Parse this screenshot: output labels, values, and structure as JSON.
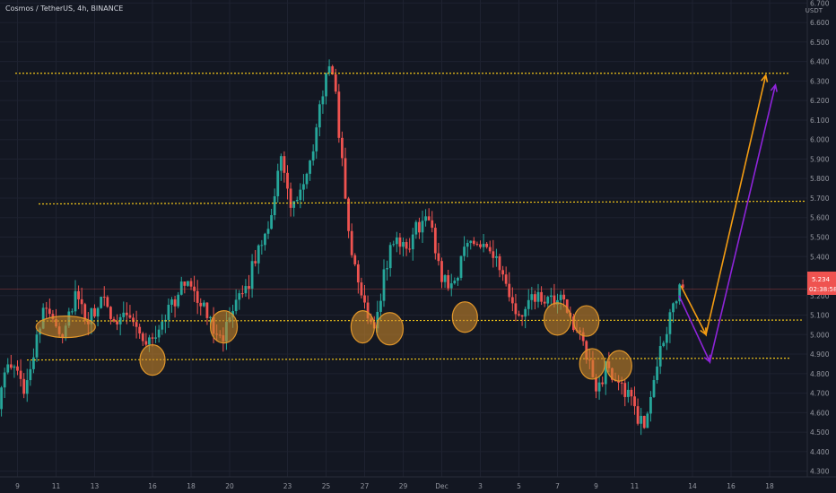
{
  "header": {
    "title": "Cosmos / TetherUS, 4h, BINANCE"
  },
  "colors": {
    "background": "#131722",
    "grid": "#1e2230",
    "up": "#26a69a",
    "down": "#ef5350",
    "level_line": "#f0c419",
    "circle_fill": "#c8862a",
    "arrow_orange": "#f39c12",
    "arrow_purple": "#8e24d9",
    "price_line": "#ef5350"
  },
  "price_label": {
    "value": "5.234",
    "timer": "02:38:58"
  },
  "chart_data": {
    "type": "candlestick",
    "unit": "USDT",
    "ylim": [
      4.3,
      6.8
    ],
    "y_ticks": [
      "6.700",
      "6.600",
      "6.500",
      "6.400",
      "6.300",
      "6.200",
      "6.100",
      "6.000",
      "5.900",
      "5.800",
      "5.700",
      "5.600",
      "5.500",
      "5.400",
      "5.300",
      "5.200",
      "5.100",
      "5.000",
      "4.900",
      "4.800",
      "4.700",
      "4.600",
      "4.500",
      "4.400",
      "4.300"
    ],
    "y_tick_values": [
      6.7,
      6.6,
      6.5,
      6.4,
      6.3,
      6.2,
      6.1,
      6.0,
      5.9,
      5.8,
      5.7,
      5.6,
      5.5,
      5.4,
      5.3,
      5.2,
      5.1,
      5.0,
      4.9,
      4.8,
      4.7,
      4.6,
      4.5,
      4.4,
      4.3
    ],
    "top_partial_tick": "6.800",
    "x_ticks": [
      {
        "label": "9",
        "day": 9
      },
      {
        "label": "11",
        "day": 11
      },
      {
        "label": "13",
        "day": 13
      },
      {
        "label": "16",
        "day": 16
      },
      {
        "label": "18",
        "day": 18
      },
      {
        "label": "20",
        "day": 20
      },
      {
        "label": "23",
        "day": 23
      },
      {
        "label": "25",
        "day": 25
      },
      {
        "label": "27",
        "day": 27
      },
      {
        "label": "29",
        "day": 29
      },
      {
        "label": "Dec",
        "day": 31
      },
      {
        "label": "3",
        "day": 33
      },
      {
        "label": "5",
        "day": 35
      },
      {
        "label": "7",
        "day": 37
      },
      {
        "label": "9",
        "day": 39
      },
      {
        "label": "11",
        "day": 41
      },
      {
        "label": "14",
        "day": 44
      },
      {
        "label": "16",
        "day": 46
      },
      {
        "label": "18",
        "day": 48
      }
    ],
    "anchors": [
      [
        8.0,
        4.66
      ],
      [
        8.6,
        4.85
      ],
      [
        9.4,
        4.72
      ],
      [
        10.1,
        5.05
      ],
      [
        10.6,
        5.15
      ],
      [
        11.3,
        5.0
      ],
      [
        12.0,
        5.2
      ],
      [
        12.6,
        5.05
      ],
      [
        13.3,
        5.18
      ],
      [
        14.0,
        5.08
      ],
      [
        14.8,
        5.12
      ],
      [
        15.4,
        4.98
      ],
      [
        16.0,
        4.96
      ],
      [
        16.6,
        5.1
      ],
      [
        17.3,
        5.2
      ],
      [
        17.9,
        5.3
      ],
      [
        18.5,
        5.15
      ],
      [
        19.1,
        5.05
      ],
      [
        19.7,
        5.0
      ],
      [
        20.4,
        5.15
      ],
      [
        21.0,
        5.28
      ],
      [
        21.7,
        5.5
      ],
      [
        22.2,
        5.62
      ],
      [
        22.6,
        5.95
      ],
      [
        23.1,
        5.65
      ],
      [
        23.5,
        5.7
      ],
      [
        24.0,
        5.78
      ],
      [
        24.5,
        6.05
      ],
      [
        24.9,
        6.3
      ],
      [
        25.4,
        6.36
      ],
      [
        25.8,
        5.9
      ],
      [
        26.1,
        5.6
      ],
      [
        26.5,
        5.32
      ],
      [
        27.0,
        5.15
      ],
      [
        27.5,
        5.05
      ],
      [
        28.0,
        5.3
      ],
      [
        28.5,
        5.5
      ],
      [
        29.1,
        5.42
      ],
      [
        29.7,
        5.55
      ],
      [
        30.3,
        5.6
      ],
      [
        31.0,
        5.3
      ],
      [
        31.6,
        5.25
      ],
      [
        32.2,
        5.45
      ],
      [
        32.8,
        5.5
      ],
      [
        33.5,
        5.45
      ],
      [
        34.1,
        5.3
      ],
      [
        34.6,
        5.15
      ],
      [
        35.2,
        5.08
      ],
      [
        35.8,
        5.2
      ],
      [
        36.4,
        5.15
      ],
      [
        37.0,
        5.18
      ],
      [
        37.6,
        5.12
      ],
      [
        38.1,
        5.0
      ],
      [
        38.6,
        4.85
      ],
      [
        39.0,
        4.72
      ],
      [
        39.5,
        4.82
      ],
      [
        40.1,
        4.78
      ],
      [
        40.6,
        4.7
      ],
      [
        41.1,
        4.58
      ],
      [
        41.5,
        4.52
      ],
      [
        41.9,
        4.75
      ],
      [
        42.4,
        4.92
      ],
      [
        42.8,
        5.1
      ],
      [
        43.2,
        5.2
      ],
      [
        43.5,
        5.25
      ]
    ],
    "levels": [
      6.34,
      5.67,
      5.07,
      4.87
    ],
    "circle_prices": [
      5.04,
      4.87,
      5.04,
      5.04,
      5.03,
      5.09,
      5.08,
      5.07,
      4.85,
      4.84
    ],
    "circle_days": [
      11.5,
      16.0,
      19.7,
      26.9,
      28.3,
      32.2,
      37.0,
      38.5,
      38.8,
      40.2
    ],
    "arrow_orange": [
      [
        43.4,
        5.25
      ],
      [
        44.7,
        5.0
      ],
      [
        47.8,
        6.33
      ]
    ],
    "arrow_purple": [
      [
        43.3,
        5.2
      ],
      [
        44.9,
        4.86
      ],
      [
        48.3,
        6.28
      ]
    ]
  }
}
